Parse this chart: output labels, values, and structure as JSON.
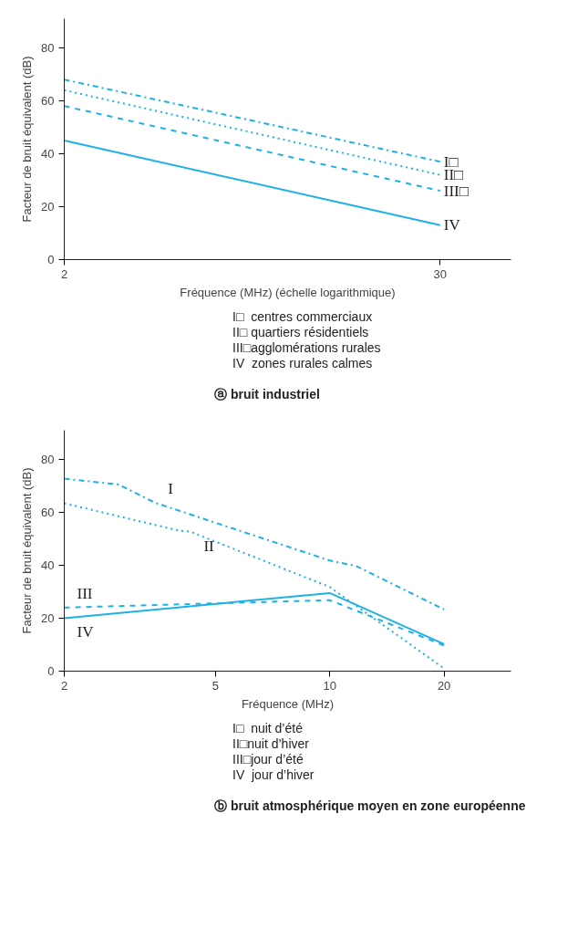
{
  "chart_data": [
    {
      "type": "line",
      "title": "ⓐ bruit industriel",
      "xlabel": "Fréquence (MHz) (échelle logarithmique)",
      "ylabel": "Facteur de bruit équivalent (dB)",
      "log": "x",
      "x": [
        2,
        30
      ],
      "xlim": [
        2,
        50
      ],
      "xticks": [
        2,
        30
      ],
      "ylim": [
        0,
        91
      ],
      "yticks": [
        0,
        20,
        40,
        60,
        80
      ],
      "grid": false,
      "series": [
        {
          "color": "#1fb1e6",
          "line_style": "dashdot",
          "values": [
            68,
            37
          ]
        },
        {
          "color": "#1fb1e6",
          "line_style": "dotted",
          "values": [
            64,
            32
          ]
        },
        {
          "color": "#1fb1e6",
          "line_style": "dashed",
          "values": [
            58,
            26
          ]
        },
        {
          "color": "#1fb1e6",
          "line_style": "solid",
          "values": [
            45,
            13
          ]
        }
      ],
      "annotations": [
        {
          "text": "I□",
          "x": 30,
          "y": 37
        },
        {
          "text": "II□",
          "x": 30,
          "y": 32
        },
        {
          "text": "III□",
          "x": 30,
          "y": 26
        },
        {
          "text": "IV",
          "x": 30,
          "y": 13
        },
        "I□  centres commerciaux",
        "II□ quartiers résidentiels",
        "III□agglomérations rurales",
        "IV  zones rurales calmes"
      ]
    },
    {
      "type": "line",
      "title": "ⓑ bruit atmosphérique moyen en zone européenne",
      "xlabel": "Fréquence (MHz)",
      "ylabel": "Facteur de bruit équivalent (dB)",
      "log": "x",
      "xlim": [
        2,
        30
      ],
      "xticks": [
        2,
        5,
        10,
        20
      ],
      "ylim": [
        0,
        91
      ],
      "yticks": [
        0,
        20,
        40,
        60,
        80
      ],
      "grid": false,
      "series": [
        {
          "color": "#1fb1e6",
          "line_style": "dashdot",
          "x": [
            2,
            2.78,
            3.47,
            10,
            11.7,
            20
          ],
          "values": [
            72.7,
            70.5,
            63.6,
            41.8,
            39.8,
            23.3
          ]
        },
        {
          "color": "#1fb1e6",
          "line_style": "dotted",
          "x": [
            2,
            3.98,
            4.31,
            10,
            20
          ],
          "values": [
            63.4,
            53.2,
            52.6,
            31.8,
            1
          ]
        },
        {
          "color": "#1fb1e6",
          "line_style": "dashed",
          "x": [
            2,
            10,
            20
          ],
          "values": [
            24,
            26.8,
            9.7
          ]
        },
        {
          "color": "#1fb1e6",
          "line_style": "solid",
          "x": [
            2,
            10,
            20
          ],
          "values": [
            20,
            29.5,
            10.2
          ]
        }
      ],
      "annotations": [
        {
          "text": "I",
          "x": 3.47,
          "y": 63.6
        },
        {
          "text": "II",
          "x": 4.31,
          "y": 52.6
        },
        {
          "text": "III",
          "x": 2,
          "y": 24
        },
        {
          "text": "IV",
          "x": 2,
          "y": 20
        },
        "I□  nuit d’été",
        "II□nuit d’hiver",
        "III□jour d’été",
        "IV  jour d’hiver"
      ]
    }
  ]
}
